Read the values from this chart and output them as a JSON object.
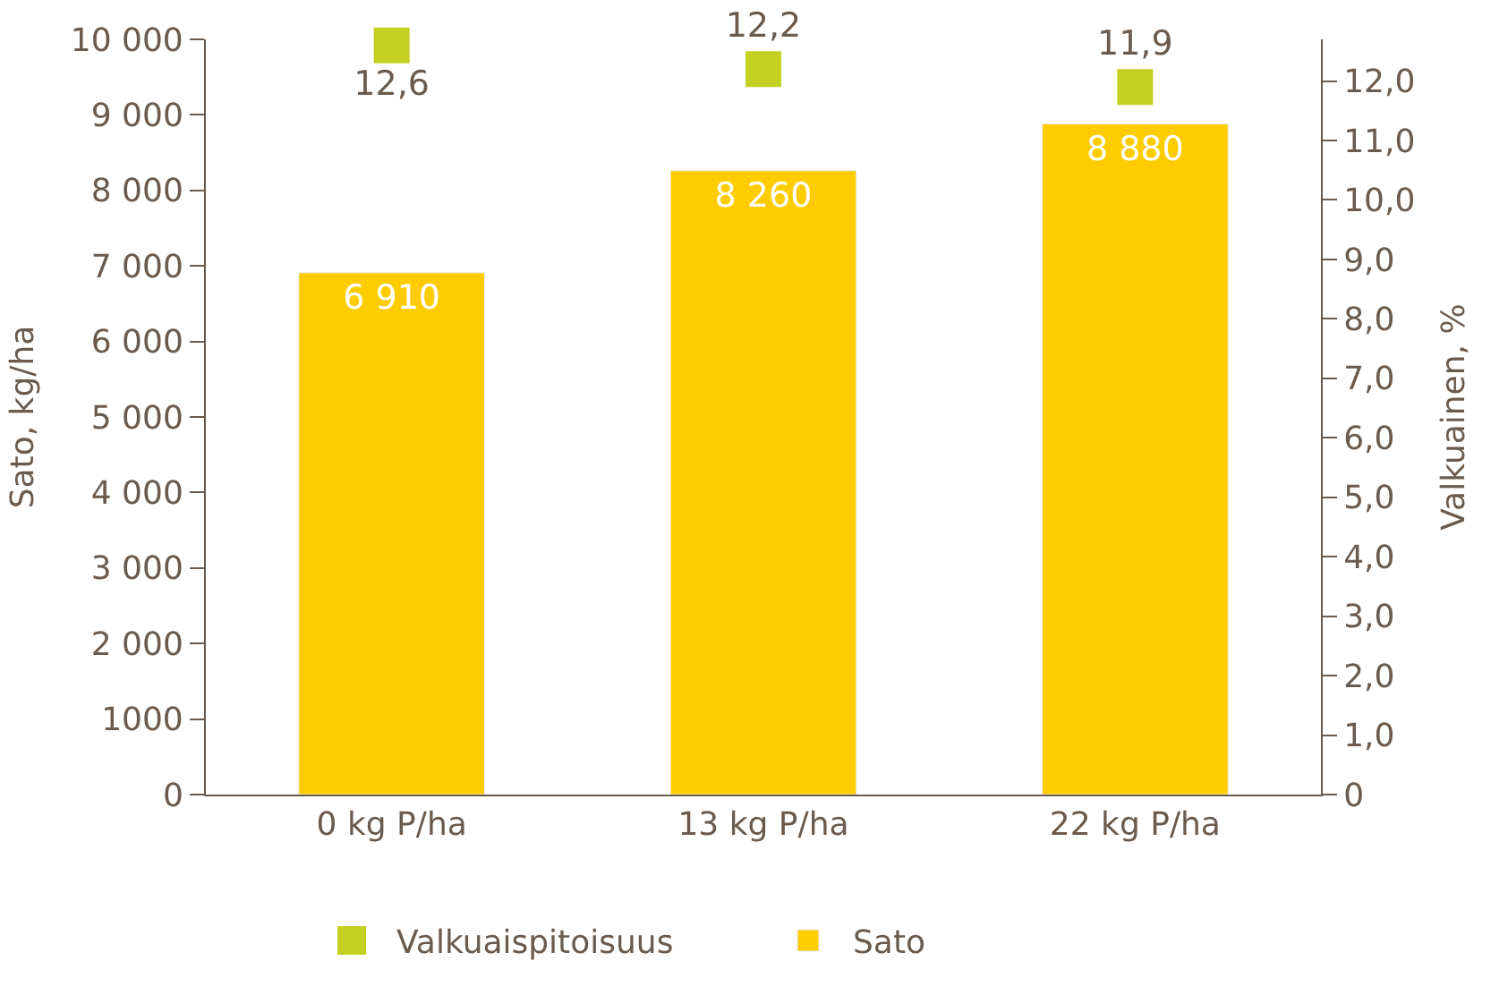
{
  "chart_data": {
    "type": "bar",
    "ylabel": "Sato, kg/ha",
    "y2label": "Valkuainen, %",
    "categories": [
      "0 kg P/ha",
      "13 kg P/ha",
      "22 kg P/ha"
    ],
    "series": [
      {
        "name": "Valkuaispitoisuus",
        "type": "scatter",
        "axis": "y2",
        "color": "#c3cf21",
        "marker": "square",
        "values": [
          12.6,
          12.2,
          11.9
        ],
        "value_labels": [
          "12,6",
          "12,2",
          "11,9"
        ]
      },
      {
        "name": "Sato",
        "color": "#ffcc00",
        "values": [
          6910,
          8260,
          8880
        ],
        "value_labels": [
          "6 910",
          "8 260",
          "8 880"
        ]
      }
    ],
    "ylim": [
      0,
      10000
    ],
    "yticks": [
      0,
      {
        "value": 1000,
        "label": "1000"
      },
      {
        "value": 2000,
        "label": "2 000"
      },
      {
        "value": 3000,
        "label": "3 000"
      },
      {
        "value": 4000,
        "label": "4 000"
      },
      {
        "value": 5000,
        "label": "5 000"
      },
      {
        "value": 6000,
        "label": "6 000"
      },
      {
        "value": 7000,
        "label": "7 000"
      },
      {
        "value": 8000,
        "label": "8 000"
      },
      {
        "value": 9000,
        "label": "9 000"
      },
      {
        "value": 10000,
        "label": "10 000"
      }
    ],
    "y2lim": [
      0,
      12.7
    ],
    "y2ticks": [
      0,
      {
        "value": 1,
        "label": "1,0"
      },
      {
        "value": 2,
        "label": "2,0"
      },
      {
        "value": 3,
        "label": "3,0"
      },
      {
        "value": 4,
        "label": "4,0"
      },
      {
        "value": 5,
        "label": "5,0"
      },
      {
        "value": 6,
        "label": "6,0"
      },
      {
        "value": 7,
        "label": "7,0"
      },
      {
        "value": 8,
        "label": "8,0"
      },
      {
        "value": 9,
        "label": "9,0"
      },
      {
        "value": 10,
        "label": "10,0"
      },
      {
        "value": 11,
        "label": "11,0"
      },
      {
        "value": 12,
        "label": "12,0"
      }
    ],
    "grid": false,
    "legend": "bottom"
  }
}
